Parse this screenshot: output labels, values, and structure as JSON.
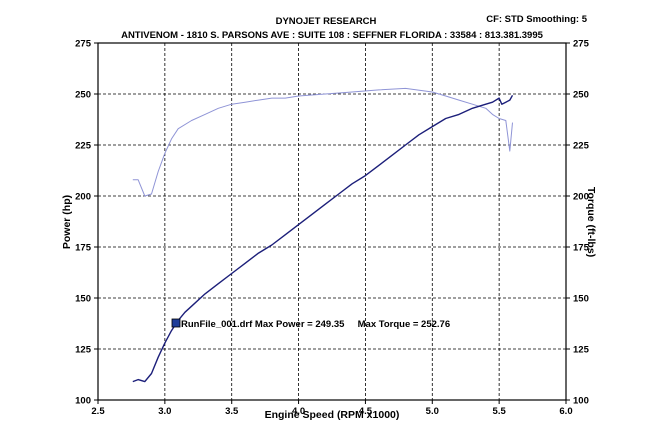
{
  "header": {
    "company": "DYNOJET RESEARCH",
    "address": "ANTIVENOM - 1810 S. PARSONS AVE : SUITE 108 : SEFFNER FLORIDA : 33584 : 813.381.3995",
    "settings": "CF: STD  Smoothing: 5"
  },
  "annotation": {
    "text": "RunFile_001.drf Max Power = 249.35     Max Torque = 252.76",
    "marker_color": "#1f3d99"
  },
  "chart_data": {
    "type": "line",
    "xlabel": "Engine Speed (RPM x1000)",
    "ylabel": "Power (hp)",
    "ylabel_right": "Torque (ft-lbs)",
    "xlim": [
      2.5,
      6.0
    ],
    "ylim": [
      100,
      275
    ],
    "ylim_right": [
      100,
      275
    ],
    "x_ticks": [
      "2.5",
      "3.0",
      "3.5",
      "4.0",
      "4.5",
      "5.0",
      "5.5",
      "6.0"
    ],
    "y_ticks": [
      "100",
      "125",
      "150",
      "175",
      "200",
      "225",
      "250",
      "275"
    ],
    "y_ticks_right": [
      "100",
      "125",
      "150",
      "175",
      "200",
      "225",
      "250",
      "275"
    ],
    "grid": true,
    "series": [
      {
        "name": "Power",
        "color": "#1c1f7a",
        "x": [
          2.76,
          2.8,
          2.85,
          2.9,
          2.95,
          3.0,
          3.05,
          3.1,
          3.15,
          3.2,
          3.3,
          3.4,
          3.5,
          3.6,
          3.7,
          3.8,
          3.9,
          4.0,
          4.1,
          4.2,
          4.3,
          4.4,
          4.5,
          4.6,
          4.7,
          4.8,
          4.9,
          5.0,
          5.1,
          5.2,
          5.3,
          5.4,
          5.45,
          5.5,
          5.52,
          5.55,
          5.58,
          5.6
        ],
        "y": [
          109,
          110,
          109,
          113,
          121,
          128,
          134,
          139,
          143,
          146,
          152,
          157,
          162,
          167,
          172,
          176,
          181,
          186,
          191,
          196,
          201,
          206,
          210,
          215,
          220,
          225,
          230,
          234,
          238,
          240,
          243,
          245,
          246,
          248,
          245,
          246,
          247,
          249.35
        ]
      },
      {
        "name": "Torque",
        "color": "#8f94d6",
        "x": [
          2.76,
          2.8,
          2.85,
          2.9,
          2.95,
          3.0,
          3.05,
          3.1,
          3.2,
          3.3,
          3.4,
          3.5,
          3.6,
          3.7,
          3.8,
          3.9,
          4.0,
          4.2,
          4.4,
          4.6,
          4.8,
          5.0,
          5.1,
          5.2,
          5.3,
          5.4,
          5.45,
          5.5,
          5.55,
          5.58,
          5.6
        ],
        "y": [
          208,
          208,
          200,
          201,
          212,
          221,
          228,
          233,
          237,
          240,
          243,
          245,
          246,
          247,
          248,
          248,
          249,
          250,
          251,
          252,
          252.76,
          251,
          249,
          247,
          245,
          243,
          240,
          238,
          237,
          222,
          236
        ]
      }
    ]
  }
}
